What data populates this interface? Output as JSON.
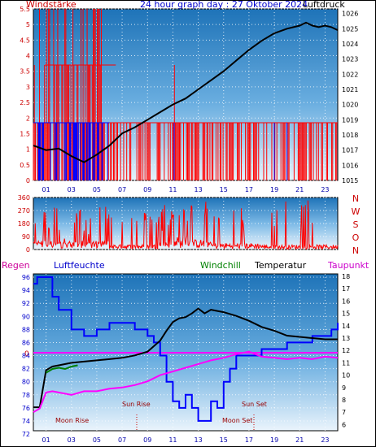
{
  "chart_data": [
    {
      "type": "line",
      "title": "24 hour graph day : 27 Oktober 2024",
      "left_axis_label": "Windstärke",
      "right_axis_label": "Luftdruck",
      "x_ticks": [
        "01",
        "03",
        "05",
        "07",
        "09",
        "11",
        "13",
        "15",
        "17",
        "19",
        "21",
        "23"
      ],
      "y_left_ticks": [
        "0",
        "0.5",
        "1",
        "1.5",
        "2",
        "2.5",
        "3",
        "3.5",
        "4",
        "4.5",
        "5",
        "5.5"
      ],
      "y_right_ticks": [
        "1015",
        "1016",
        "1017",
        "1018",
        "1019",
        "1020",
        "1021",
        "1022",
        "1023",
        "1024",
        "1025",
        "1026"
      ],
      "y_left_range": [
        0,
        5.5
      ],
      "y_right_range": [
        1015,
        1026.3
      ],
      "series": [
        {
          "color": "#ff0000",
          "axis": "left",
          "style": "bars"
        },
        {
          "color": "#0000ff",
          "axis": "left",
          "style": "bars"
        },
        {
          "color": "#000000",
          "axis": "right",
          "x": [
            0,
            1,
            2,
            3,
            4,
            5,
            6,
            7,
            8,
            9,
            10,
            11,
            12,
            13,
            14,
            15,
            16,
            17,
            18,
            19,
            20,
            21,
            21.5,
            22,
            22.5,
            23,
            23.5,
            24
          ],
          "y": [
            1017.3,
            1017.0,
            1017.1,
            1016.6,
            1016.2,
            1016.7,
            1017.3,
            1018.1,
            1018.5,
            1019.0,
            1019.5,
            1020.0,
            1020.4,
            1021.0,
            1021.6,
            1022.2,
            1022.9,
            1023.6,
            1024.2,
            1024.7,
            1025.0,
            1025.2,
            1025.4,
            1025.2,
            1025.1,
            1025.2,
            1025.1,
            1024.9
          ]
        }
      ]
    },
    {
      "type": "line",
      "y_left_ticks": [
        "0",
        "90",
        "180",
        "270",
        "360"
      ],
      "y_right_letters": [
        "N",
        "W",
        "S",
        "O",
        "N"
      ],
      "y_range": [
        0,
        360
      ],
      "series": [
        {
          "color": "#ff0000"
        }
      ]
    },
    {
      "type": "line",
      "top_labels": {
        "regen": "Regen",
        "luftfeuchte": "Luftfeuchte",
        "windchill": "Windchill",
        "temperatur": "Temperatur",
        "taupunkt": "Taupunkt"
      },
      "rain_value_label": "0",
      "y_left_ticks": [
        "72",
        "74",
        "76",
        "78",
        "80",
        "82",
        "84",
        "86",
        "88",
        "90",
        "92",
        "94",
        "96"
      ],
      "y_right_ticks": [
        "6",
        "7",
        "8",
        "9",
        "10",
        "11",
        "12",
        "13",
        "14",
        "15",
        "16",
        "17",
        "18"
      ],
      "y_left_range": [
        72.5,
        96.5
      ],
      "y_right_range": [
        5.5,
        18.2
      ],
      "x_ticks": [
        "01",
        "03",
        "05",
        "07",
        "09",
        "11",
        "13",
        "15",
        "17",
        "19",
        "21",
        "23"
      ],
      "events": {
        "sun_rise": "Sun Rise",
        "sun_set": "Sun Set",
        "moon_rise": "Moon Rise",
        "moon_set": "Moon Set"
      },
      "series": [
        {
          "color": "#0000ff",
          "axis": "left",
          "x": [
            0,
            0.3,
            1,
            1.5,
            2,
            3,
            4,
            5,
            6,
            7,
            7.5,
            8,
            9,
            9.5,
            10,
            10.5,
            11,
            11.5,
            12,
            12.5,
            13,
            13.5,
            14,
            14.5,
            15,
            15.5,
            16,
            16.5,
            17,
            18,
            19,
            20,
            21,
            22,
            23,
            23.5,
            24
          ],
          "y": [
            95,
            96,
            96,
            93,
            91,
            88,
            87,
            88,
            89,
            89,
            89,
            88,
            87,
            86,
            84,
            80,
            77,
            76,
            78,
            76,
            74,
            74,
            77,
            76,
            80,
            82,
            84,
            84,
            84,
            85,
            85,
            86,
            86,
            87,
            87,
            88,
            89
          ]
        },
        {
          "color": "#000000",
          "axis": "right",
          "x": [
            0,
            0.5,
            1,
            1.5,
            2,
            3,
            4,
            5,
            6,
            7,
            8,
            9,
            10,
            10.5,
            11,
            11.5,
            12,
            12.5,
            13,
            13.5,
            14,
            15,
            16,
            17,
            18,
            19,
            20,
            21,
            22,
            23,
            24
          ],
          "y": [
            7.4,
            7.4,
            10.4,
            10.7,
            10.8,
            11.0,
            11.1,
            11.2,
            11.3,
            11.4,
            11.6,
            11.9,
            12.8,
            13.6,
            14.3,
            14.6,
            14.7,
            15.0,
            15.4,
            15.0,
            15.3,
            15.1,
            14.8,
            14.4,
            13.9,
            13.6,
            13.2,
            13.1,
            13.0,
            12.9,
            12.9
          ]
        },
        {
          "color": "#008000",
          "axis": "right",
          "x": [
            1,
            1.5,
            2,
            2.5,
            3,
            3.5
          ],
          "y": [
            10.2,
            10.5,
            10.6,
            10.5,
            10.7,
            10.8
          ]
        },
        {
          "color": "#ff00ff",
          "axis": "right",
          "x": [
            0,
            0.5,
            1,
            1.5,
            2,
            3,
            4,
            5,
            6,
            7,
            8,
            9,
            10,
            11,
            12,
            13,
            14,
            15,
            16,
            17,
            18,
            19,
            20,
            21,
            22,
            23,
            24
          ],
          "y": [
            7.0,
            7.3,
            8.6,
            8.7,
            8.6,
            8.4,
            8.7,
            8.7,
            8.9,
            9.0,
            9.2,
            9.5,
            10.0,
            10.3,
            10.6,
            10.9,
            11.2,
            11.4,
            11.7,
            11.9,
            11.5,
            11.4,
            11.3,
            11.4,
            11.3,
            11.5,
            11.4
          ]
        }
      ]
    }
  ]
}
